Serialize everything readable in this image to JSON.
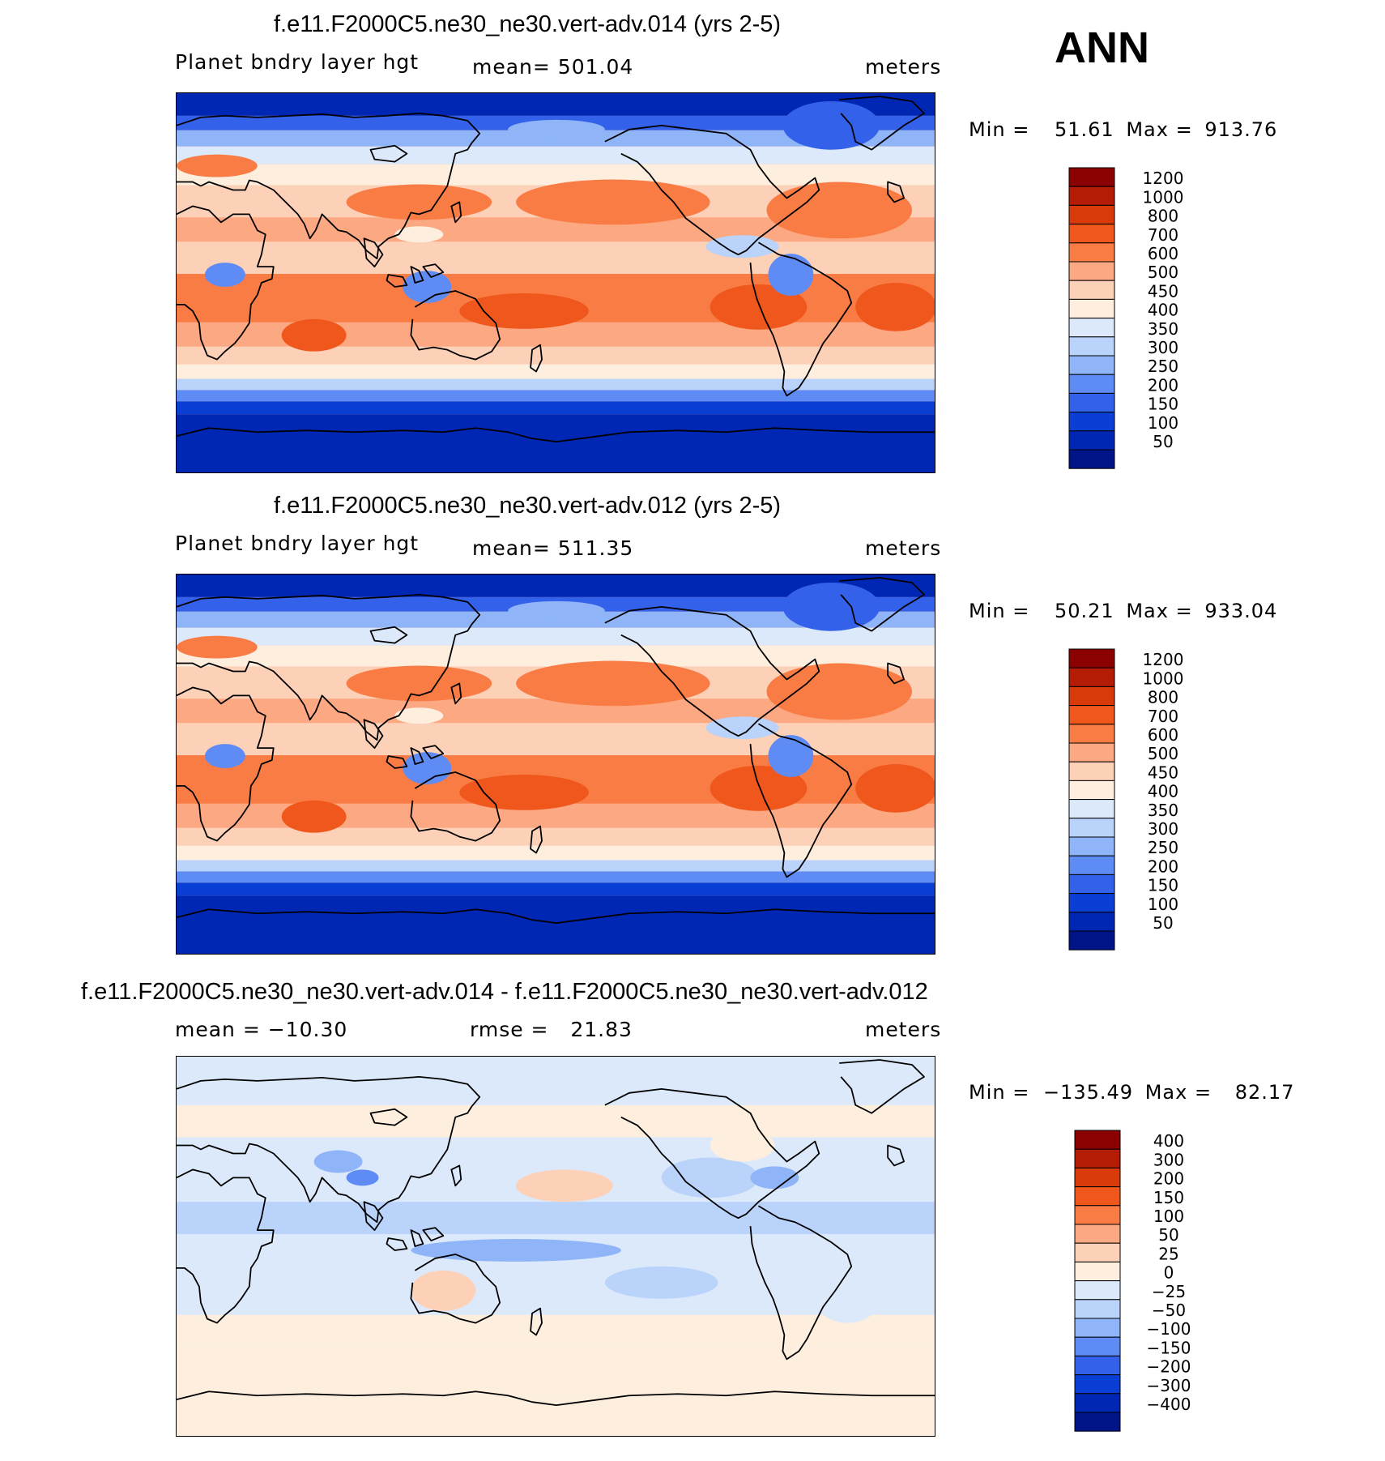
{
  "season": "ANN",
  "panels": [
    {
      "title": "f.e11.F2000C5.ne30_ne30.vert-adv.014 (yrs 2-5)",
      "left_label": "Planet bndry layer hgt",
      "center_label": "mean= 501.04",
      "units": "meters",
      "min_label": "Min =",
      "min_value": "51.61",
      "max_label": "Max =",
      "max_value": "913.76",
      "variant": "field"
    },
    {
      "title": "f.e11.F2000C5.ne30_ne30.vert-adv.012 (yrs 2-5)",
      "left_label": "Planet bndry layer hgt",
      "center_label": "mean= 511.35",
      "units": "meters",
      "min_label": "Min =",
      "min_value": "50.21",
      "max_label": "Max =",
      "max_value": "933.04",
      "variant": "field"
    },
    {
      "title": "f.e11.F2000C5.ne30_ne30.vert-adv.014 - f.e11.F2000C5.ne30_ne30.vert-adv.012",
      "left_label": "mean = −10.30",
      "center_label": "rmse =   21.83",
      "units": "meters",
      "min_label": "Min =",
      "min_value": "−135.49",
      "max_label": "Max =",
      "max_value": "82.17",
      "variant": "diff"
    }
  ],
  "colorbars": {
    "field": {
      "levels": [
        "1200",
        "1000",
        "800",
        "700",
        "600",
        "500",
        "450",
        "400",
        "350",
        "300",
        "250",
        "200",
        "150",
        "100",
        "50"
      ],
      "colors": [
        "#8b0000",
        "#b41c06",
        "#d93a0a",
        "#f0571c",
        "#fa7c45",
        "#fca883",
        "#fdd0b8",
        "#fdeede",
        "#dce9fb",
        "#b9d3fb",
        "#8fb4f8",
        "#5f8cf4",
        "#3461ea",
        "#0a3fd6",
        "#0026b4",
        "#001488"
      ]
    },
    "diff": {
      "levels": [
        "400",
        "300",
        "200",
        "150",
        "100",
        "50",
        "25",
        "0",
        "−25",
        "−50",
        "−100",
        "−150",
        "−200",
        "−300",
        "−400"
      ],
      "colors": [
        "#8b0000",
        "#b41c06",
        "#d93a0a",
        "#f0571c",
        "#fa7c45",
        "#fca883",
        "#fdd0b8",
        "#fdeede",
        "#dce9fb",
        "#b9d3fb",
        "#8fb4f8",
        "#5f8cf4",
        "#3461ea",
        "#0a3fd6",
        "#0026b4",
        "#001488"
      ]
    }
  }
}
